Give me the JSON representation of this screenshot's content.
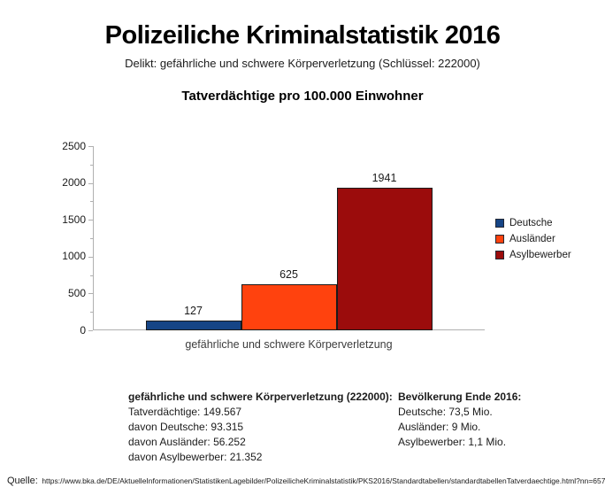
{
  "header": {
    "title": "Polizeiliche Kriminalstatistik 2016",
    "subtitle": "Delikt: gefährliche und schwere Körperverletzung (Schlüssel: 222000)"
  },
  "chart_data": {
    "type": "bar",
    "title": "Tatverdächtige pro 100.000 Einwohner",
    "categories": [
      "gefährliche und schwere Körperverletzung"
    ],
    "series": [
      {
        "name": "Deutsche",
        "values": [
          127
        ],
        "color": "#164586"
      },
      {
        "name": "Ausländer",
        "values": [
          625
        ],
        "color": "#FF420E"
      },
      {
        "name": "Asylbewerber",
        "values": [
          1941
        ],
        "color": "#9B0C0C"
      }
    ],
    "xlabel": "gefährliche und schwere Körperverletzung",
    "ylabel": "",
    "ylim": [
      0,
      2500
    ],
    "yticks": [
      0,
      500,
      1000,
      1500,
      2000,
      2500
    ],
    "legend_position": "right",
    "grid": false
  },
  "stats": {
    "left": {
      "header": "gefährliche und schwere Körperverletzung (222000):",
      "lines": [
        "Tatverdächtige: 149.567",
        "davon Deutsche: 93.315",
        "davon Ausländer: 56.252",
        "davon Asylbewerber: 21.352"
      ]
    },
    "right": {
      "header": "Bevölkerung Ende 2016:",
      "lines": [
        "Deutsche: 73,5 Mio.",
        "Ausländer: 9 Mio.",
        "Asylbewerber: 1,1 Mio."
      ]
    }
  },
  "source": {
    "label": "Quelle:",
    "url": "https://www.bka.de/DE/AktuelleInformationen/StatistikenLagebilder/PolizeilicheKriminalstatistik/PKS2016/Standardtabellen/standardtabellenTatverdaechtige.html?nn=65720"
  }
}
